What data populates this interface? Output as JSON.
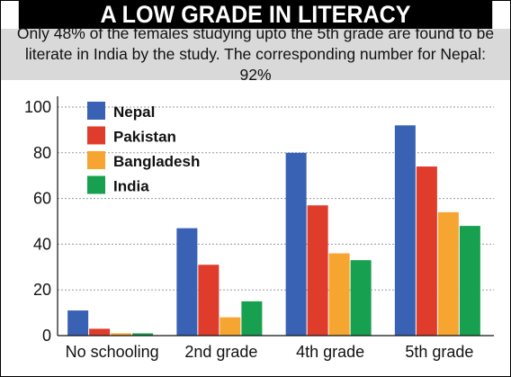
{
  "title": "A LOW GRADE IN LITERACY",
  "subtitle_lines": [
    "Only 48% of the females studying upto the 5th grade are found to be",
    "literate in India by the study. The corresponding number for Nepal: 92%"
  ],
  "chart_data": {
    "type": "bar",
    "categories": [
      "No schooling",
      "2nd grade",
      "4th grade",
      "5th grade"
    ],
    "series": [
      {
        "name": "Nepal",
        "color": "#3a62b4",
        "values": [
          11,
          47,
          80,
          92
        ]
      },
      {
        "name": "Pakistan",
        "color": "#e03c2c",
        "values": [
          3,
          31,
          57,
          74
        ]
      },
      {
        "name": "Bangladesh",
        "color": "#f7a531",
        "values": [
          1,
          8,
          36,
          54
        ]
      },
      {
        "name": "India",
        "color": "#17a04f",
        "values": [
          1,
          15,
          33,
          48
        ]
      }
    ],
    "yticks": [
      0,
      20,
      40,
      60,
      80,
      100
    ],
    "ylim": [
      0,
      100
    ],
    "grid": true,
    "legend_position": "top-left"
  }
}
